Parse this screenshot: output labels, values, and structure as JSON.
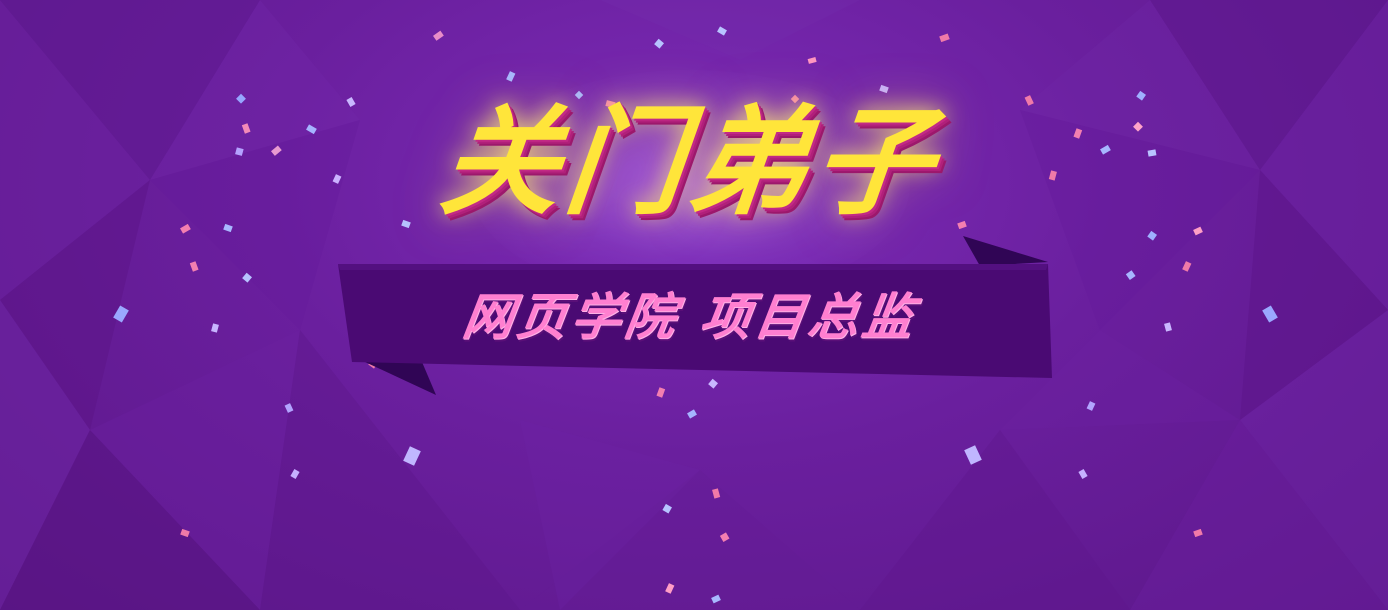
{
  "banner": {
    "title": "关门弟子",
    "subtitle": "网页学院 项目总监"
  },
  "colors": {
    "background": "#6a1f9c",
    "title": "#ffe53a",
    "title_shadow": "#b0207a",
    "ribbon": "#4a0a73",
    "ribbon_fold": "#300555",
    "subtitle": "#ff7fd0"
  }
}
